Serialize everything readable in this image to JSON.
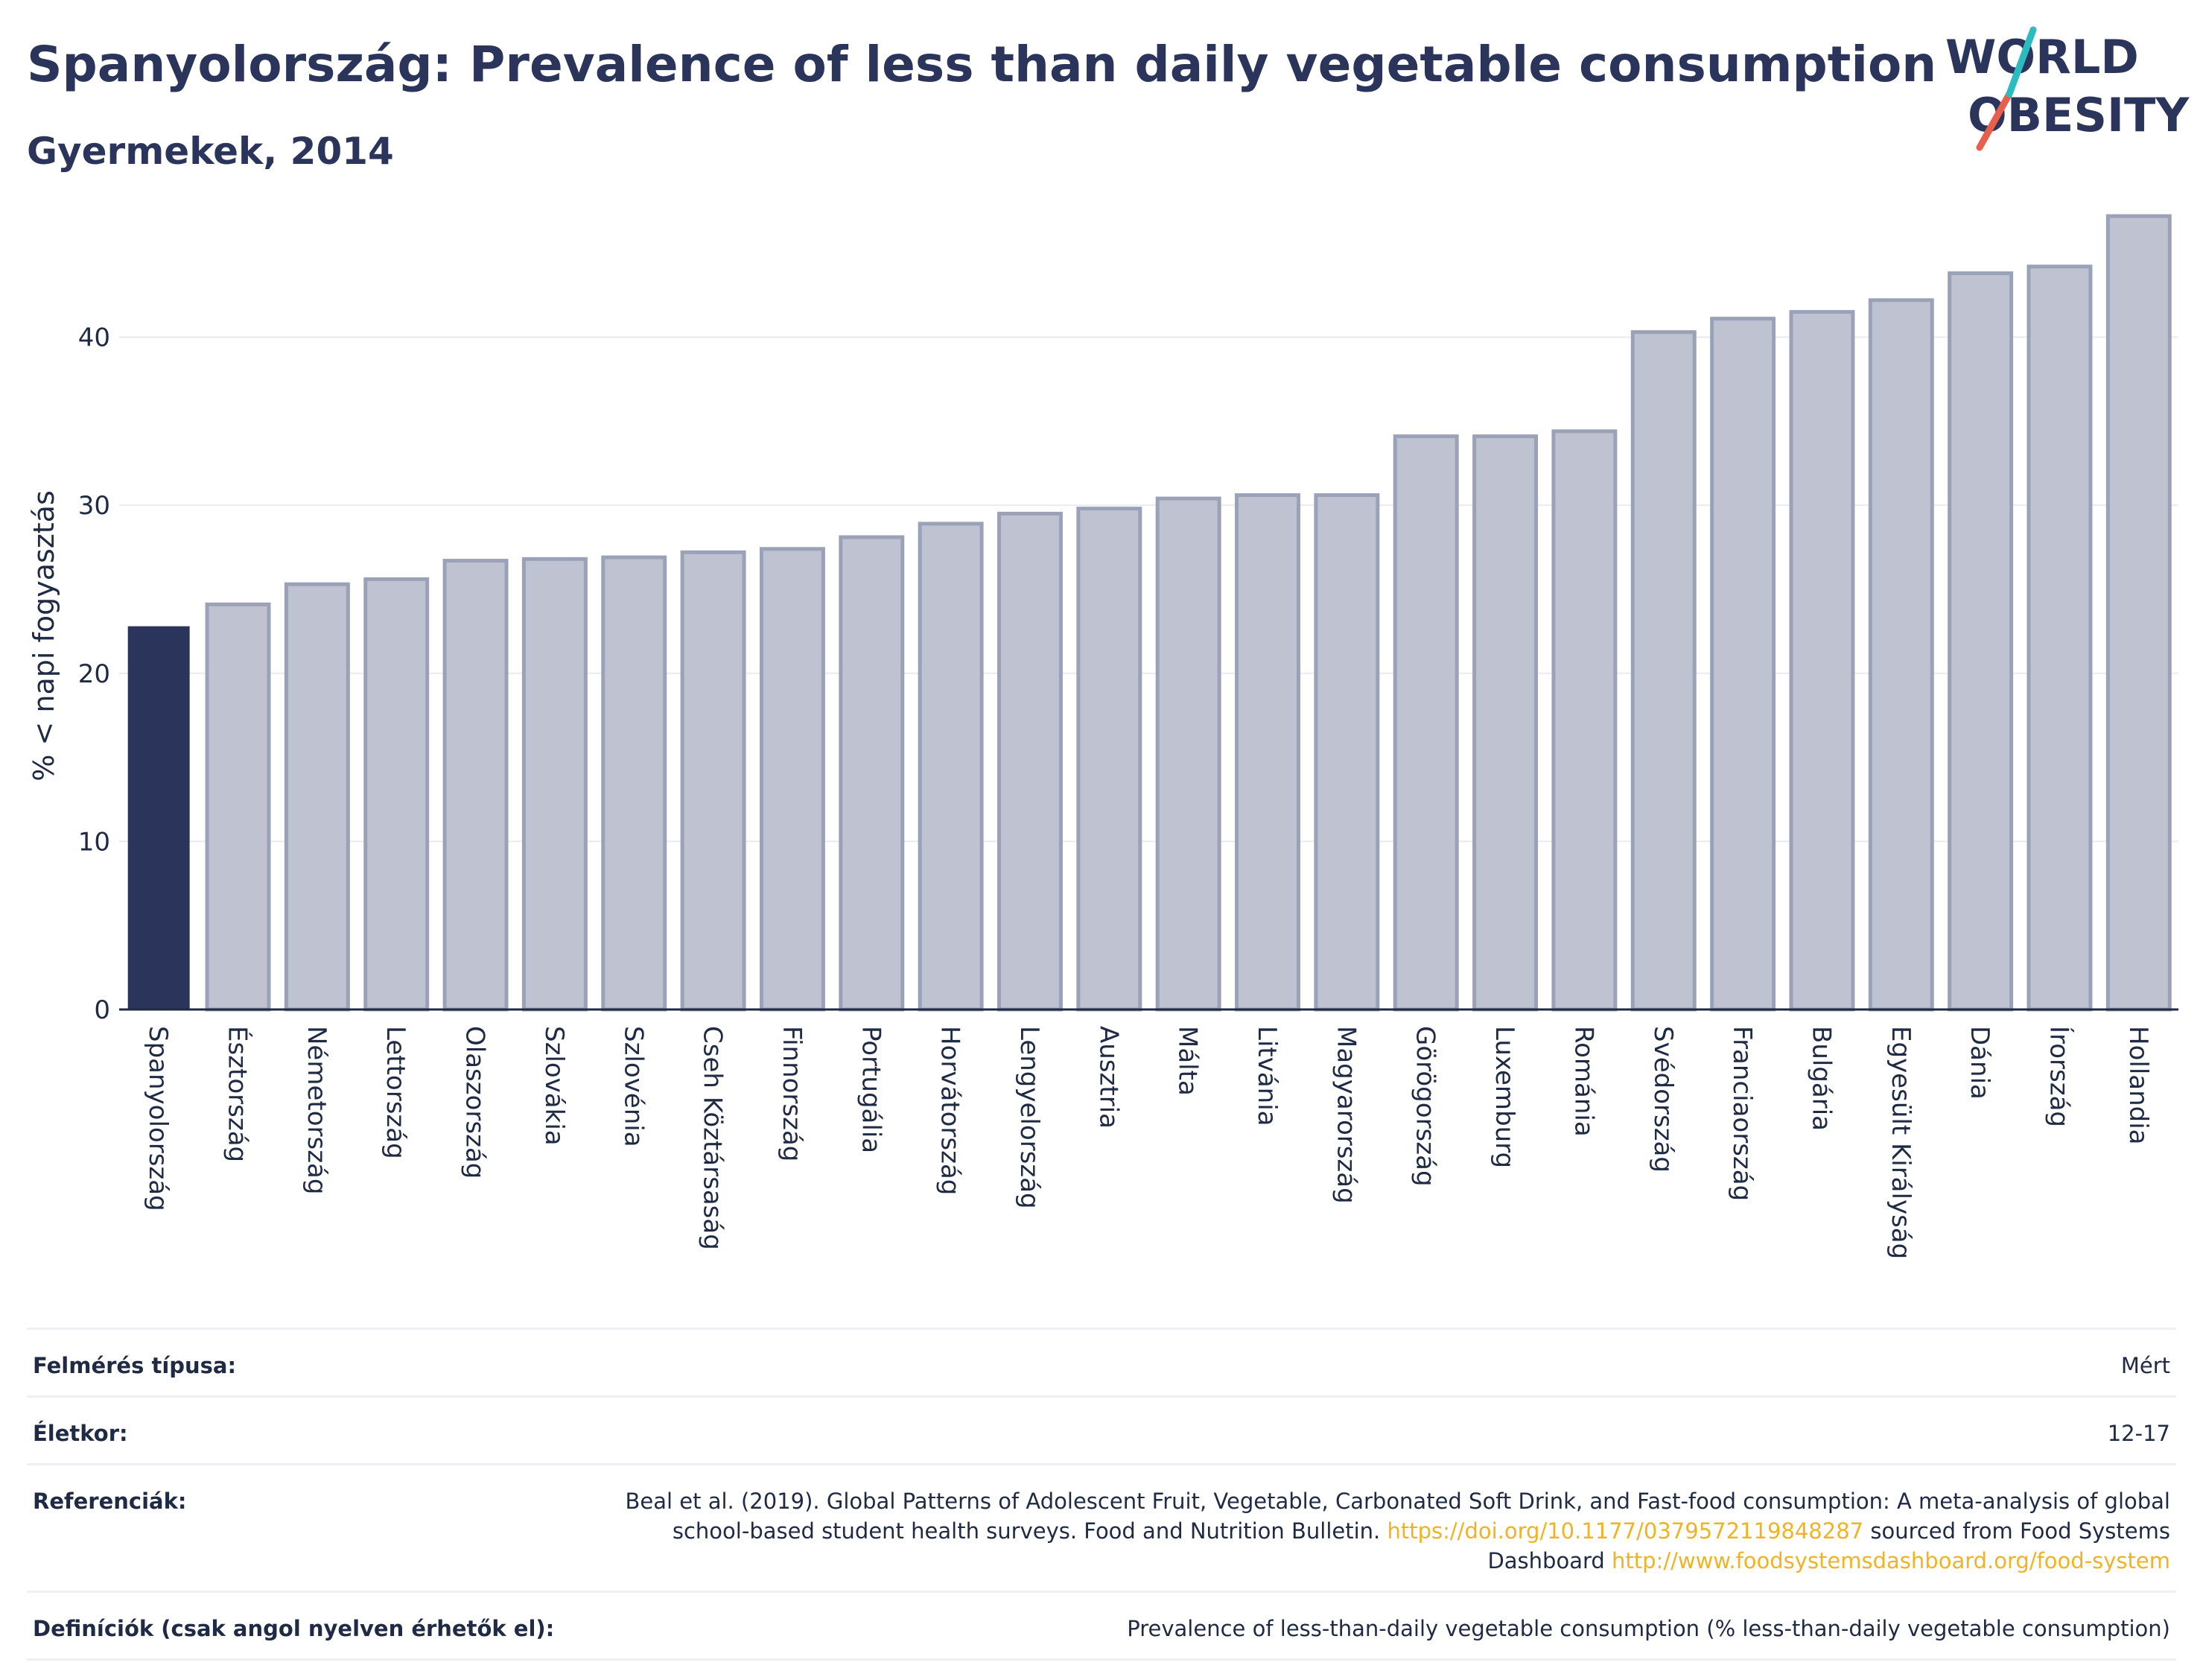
{
  "header": {
    "title": "Spanyolország: Prevalence of less than daily vegetable consumption",
    "subtitle": "Gyermekek, 2014"
  },
  "logo": {
    "line1": "WORLD",
    "line2": "OBESITY"
  },
  "colors": {
    "highlight_bar": "#2b355c",
    "other_bar": "#bfc3d1",
    "other_bar_border": "#9ba2b8",
    "logo_text": "#2b355c",
    "logo_red": "#e8604c",
    "logo_teal": "#2bbcc0",
    "link": "#f0b323"
  },
  "chart_data": {
    "type": "bar",
    "ylabel": "% < napi fogyasztás",
    "xlabel": "",
    "ylim": [
      0,
      48
    ],
    "yticks": [
      0,
      10,
      20,
      30,
      40
    ],
    "grid": true,
    "highlight": "Spanyolország",
    "categories": [
      "Spanyolország",
      "Észtország",
      "Németország",
      "Lettország",
      "Olaszország",
      "Szlovákia",
      "Szlovénia",
      "Cseh Köztársaság",
      "Finnország",
      "Portugália",
      "Horvátország",
      "Lengyelország",
      "Ausztria",
      "Málta",
      "Litvánia",
      "Magyarország",
      "Görögország",
      "Luxemburg",
      "Románia",
      "Svédország",
      "Franciaország",
      "Bulgária",
      "Egyesült Királyság",
      "Dánia",
      "Írország",
      "Hollandia"
    ],
    "values": [
      22.8,
      24.1,
      25.3,
      25.6,
      26.7,
      26.8,
      26.9,
      27.2,
      27.4,
      28.1,
      28.9,
      29.5,
      29.8,
      30.4,
      30.6,
      30.6,
      34.1,
      34.1,
      34.4,
      40.3,
      41.1,
      41.5,
      42.2,
      43.8,
      44.2,
      47.2
    ]
  },
  "meta": {
    "survey_label": "Felmérés típusa:",
    "survey_value": "Mért",
    "age_label": "Életkor:",
    "age_value": "12-17",
    "ref_label": "Referenciák:",
    "ref_text1": "Beal et al. (2019). Global Patterns of Adolescent Fruit, Vegetable, Carbonated Soft Drink, and Fast-food consumption: A meta-analysis of global school-based student health surveys. Food and Nutrition Bulletin.",
    "ref_link1": "https://doi.org/10.1177/0379572119848287",
    "ref_text2": "sourced from Food Systems Dashboard",
    "ref_link2": "http://www.foodsystemsdashboard.org/food-system",
    "def_label": "Definíciók (csak angol nyelven érhetők el):",
    "def_value": "Prevalence of less-than-daily vegetable consumption (% less-than-daily vegetable consumption)"
  }
}
